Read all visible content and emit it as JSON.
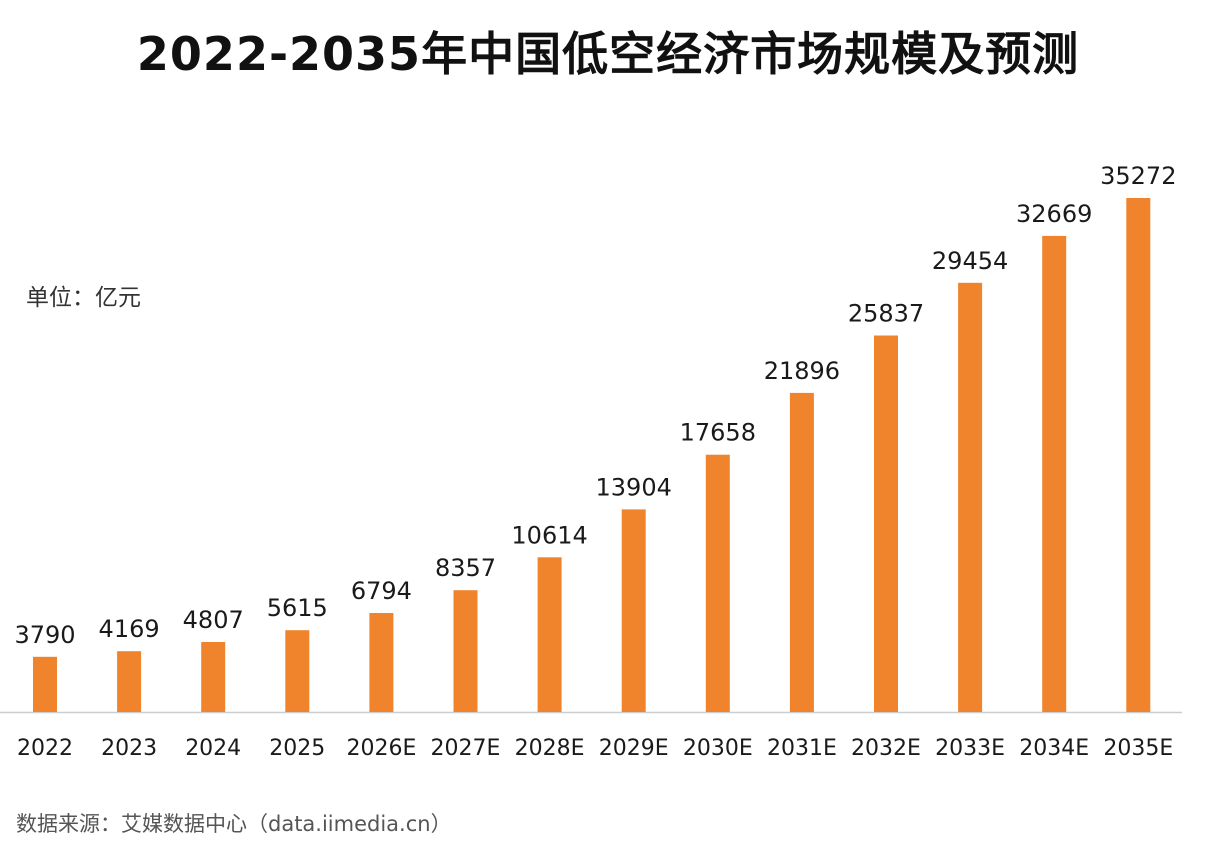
{
  "title": "2022-2035年中国低空经济市场规模及预测",
  "unit_label": "单位：亿元",
  "source": "数据来源：艾媒数据中心（data.iimedia.cn）",
  "colors": {
    "bar": "#f0842c",
    "axis": "#cccccc",
    "text": "#1a1a1a"
  },
  "chart_data": {
    "type": "bar",
    "title": "2022-2035年中国低空经济市场规模及预测",
    "ylabel": "单位：亿元",
    "xlabel": "",
    "categories": [
      "2022",
      "2023",
      "2024",
      "2025",
      "2026E",
      "2027E",
      "2028E",
      "2029E",
      "2030E",
      "2031E",
      "2032E",
      "2033E",
      "2034E",
      "2035E"
    ],
    "values": [
      3790,
      4169,
      4807,
      5615,
      6794,
      8357,
      10614,
      13904,
      17658,
      21896,
      25837,
      29454,
      32669,
      35272
    ],
    "data_labels": [
      "3790",
      "4169",
      "4807",
      "5615",
      "6794",
      "8357",
      "10614",
      "13904",
      "17658",
      "21896",
      "25837",
      "29454",
      "32669",
      "35272"
    ],
    "ylim": [
      0,
      35272
    ],
    "grid": false,
    "legend": "none"
  }
}
